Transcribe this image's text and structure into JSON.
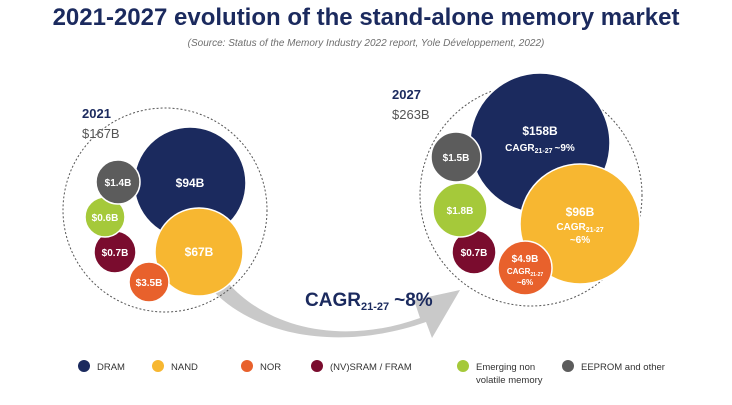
{
  "title": "2021-2027 evolution of the stand-alone memory market",
  "source": "(Source: Status of the Memory Industry 2022 report, Yole Développement, 2022)",
  "colors": {
    "DRAM": "#1b2a5e",
    "NAND": "#f7b731",
    "NOR": "#e8612c",
    "NVSRAM": "#7a0c2e",
    "Emerging": "#a5c93a",
    "EEPROM": "#5c5c5c",
    "arrow": "#c9c9c9",
    "ring": "#555555"
  },
  "chart_data": {
    "type": "bubble",
    "unit": "$B",
    "panels": [
      {
        "year": "2021",
        "total": "$167B",
        "bubbles": [
          {
            "category": "DRAM",
            "value": 94,
            "label": "$94B"
          },
          {
            "category": "NAND",
            "value": 67,
            "label": "$67B"
          },
          {
            "category": "NOR",
            "value": 3.5,
            "label": "$3.5B"
          },
          {
            "category": "(NV)SRAM / FRAM",
            "value": 0.7,
            "label": "$0.7B"
          },
          {
            "category": "Emerging non volatile memory",
            "value": 0.6,
            "label": "$0.6B"
          },
          {
            "category": "EEPROM and other",
            "value": 1.4,
            "label": "$1.4B"
          }
        ]
      },
      {
        "year": "2027",
        "total": "$263B",
        "bubbles": [
          {
            "category": "DRAM",
            "value": 158,
            "label": "$158B",
            "cagr": "CAGR21-27 ~9%"
          },
          {
            "category": "NAND",
            "value": 96,
            "label": "$96B",
            "cagr": "CAGR21-27 ~6%"
          },
          {
            "category": "NOR",
            "value": 4.9,
            "label": "$4.9B",
            "cagr": "CAGR21-27 ~6%"
          },
          {
            "category": "(NV)SRAM / FRAM",
            "value": 0.7,
            "label": "$0.7B"
          },
          {
            "category": "Emerging non volatile memory",
            "value": 1.8,
            "label": "$1.8B"
          },
          {
            "category": "EEPROM and other",
            "value": 1.5,
            "label": "$1.5B"
          }
        ]
      }
    ],
    "overall_cagr": {
      "label": "CAGR",
      "sub": "21-27",
      "value": "~8%"
    },
    "legend": [
      "DRAM",
      "NAND",
      "NOR",
      "(NV)SRAM / FRAM",
      "Emerging non volatile memory",
      "EEPROM and other"
    ]
  }
}
